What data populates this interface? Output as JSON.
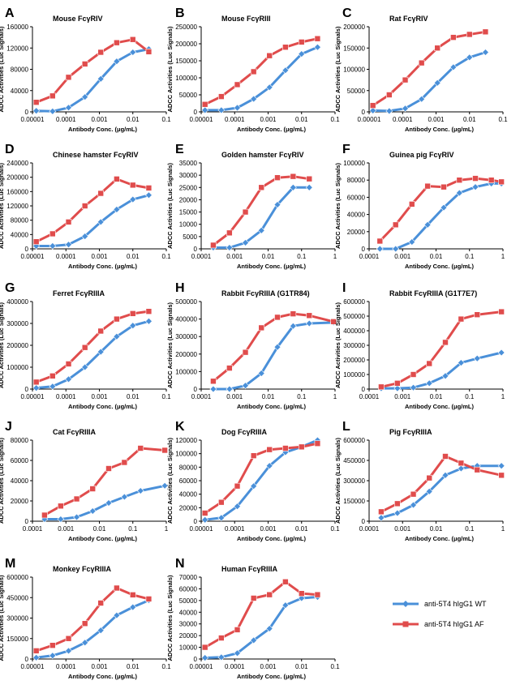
{
  "colors": {
    "wt": "#4a90d9",
    "af": "#e04c4c",
    "axis": "#000000"
  },
  "legend": [
    {
      "series": "wt",
      "label": "anti-5T4 hIgG1 WT"
    },
    {
      "series": "af",
      "label": "anti-5T4 hIgG1 AF"
    }
  ],
  "chart_data": [
    {
      "letter": "A",
      "title": "Mouse FcγRIV",
      "type": "line",
      "xscale": "log",
      "xlim": [
        1e-05,
        0.1
      ],
      "xticks": [
        "0.00001",
        "0.0001",
        "0.001",
        "0.01",
        "0.1"
      ],
      "ylim": [
        0,
        160000
      ],
      "yticks": [
        0,
        40000,
        80000,
        120000,
        160000
      ],
      "xlabel": "Antibody Conc. (μg/mL)",
      "ylabel": "ADCC Activities (Luc Signals)",
      "x": [
        1.3e-05,
        4e-05,
        0.00012,
        0.00037,
        0.0011,
        0.0033,
        0.01,
        0.03
      ],
      "series": [
        {
          "key": "wt",
          "values": [
            2000,
            1000,
            8000,
            28000,
            62000,
            95000,
            112000,
            118000
          ]
        },
        {
          "key": "af",
          "values": [
            18000,
            30000,
            65000,
            90000,
            112000,
            130000,
            136000,
            113000
          ]
        }
      ]
    },
    {
      "letter": "B",
      "title": "Mouse FcγRIII",
      "type": "line",
      "xscale": "log",
      "xlim": [
        1e-05,
        0.1
      ],
      "xticks": [
        "0.00001",
        "0.0001",
        "0.001",
        "0.01",
        "0.1"
      ],
      "ylim": [
        0,
        250000
      ],
      "yticks": [
        0,
        50000,
        100000,
        150000,
        200000,
        250000
      ],
      "xlabel": "Antibody Conc. (μg/mL)",
      "ylabel": "ADCC Activities (Luc Signals)",
      "x": [
        1.3e-05,
        4e-05,
        0.00012,
        0.00037,
        0.0011,
        0.0033,
        0.01,
        0.03
      ],
      "series": [
        {
          "key": "wt",
          "values": [
            5000,
            5000,
            12000,
            38000,
            72000,
            122000,
            170000,
            190000
          ]
        },
        {
          "key": "af",
          "values": [
            22000,
            45000,
            80000,
            118000,
            165000,
            190000,
            205000,
            215000
          ]
        }
      ]
    },
    {
      "letter": "C",
      "title": "Rat FcγRIV",
      "type": "line",
      "xscale": "log",
      "xlim": [
        1e-05,
        0.1
      ],
      "xticks": [
        "0.00001",
        "0.0001",
        "0.001",
        "0.01",
        "0.1"
      ],
      "ylim": [
        0,
        200000
      ],
      "yticks": [
        0,
        50000,
        100000,
        150000,
        200000
      ],
      "xlabel": "Antibody Conc. (μg/mL)",
      "ylabel": "ADCC Activities (Luc Signals)",
      "x": [
        1.3e-05,
        4e-05,
        0.00012,
        0.00037,
        0.0011,
        0.0033,
        0.01,
        0.03
      ],
      "series": [
        {
          "key": "wt",
          "values": [
            3000,
            2000,
            8000,
            30000,
            68000,
            105000,
            128000,
            140000
          ]
        },
        {
          "key": "af",
          "values": [
            15000,
            40000,
            75000,
            115000,
            150000,
            175000,
            182000,
            188000
          ]
        }
      ]
    },
    {
      "letter": "D",
      "title": "Chinese hamster FcγRIV",
      "type": "line",
      "xscale": "log",
      "xlim": [
        1e-05,
        0.1
      ],
      "xticks": [
        "0.00001",
        "0.0001",
        "0.001",
        "0.01",
        "0.1"
      ],
      "ylim": [
        0,
        240000
      ],
      "yticks": [
        0,
        40000,
        80000,
        120000,
        160000,
        200000,
        240000
      ],
      "xlabel": "Antibody Conc. (μg/mL)",
      "ylabel": "ADCC Activities (Luc Signals)",
      "x": [
        1.3e-05,
        4e-05,
        0.00012,
        0.00037,
        0.0011,
        0.0033,
        0.01,
        0.03
      ],
      "series": [
        {
          "key": "wt",
          "values": [
            8000,
            8000,
            12000,
            35000,
            75000,
            110000,
            138000,
            150000
          ]
        },
        {
          "key": "af",
          "values": [
            20000,
            42000,
            75000,
            120000,
            155000,
            195000,
            178000,
            170000
          ]
        }
      ]
    },
    {
      "letter": "E",
      "title": "Golden hamster FcγRIV",
      "type": "line",
      "xscale": "log",
      "xlim": [
        0.0001,
        1
      ],
      "xticks": [
        "0.0001",
        "0.001",
        "0.01",
        "0.1",
        "1"
      ],
      "ylim": [
        0,
        35000
      ],
      "yticks": [
        0,
        5000,
        10000,
        15000,
        20000,
        25000,
        30000,
        35000
      ],
      "xlabel": "Antibody Conc. (μg/mL)",
      "ylabel": "ADCC Activities (Luc Signals)",
      "x": [
        0.00023,
        0.0007,
        0.0021,
        0.0063,
        0.019,
        0.056,
        0.17
      ],
      "series": [
        {
          "key": "wt",
          "values": [
            500,
            500,
            2500,
            7500,
            18000,
            25000,
            25000
          ]
        },
        {
          "key": "af",
          "values": [
            1500,
            6500,
            15000,
            25000,
            29000,
            29500,
            28500
          ]
        }
      ]
    },
    {
      "letter": "F",
      "title": "Guinea pig FcγRIV",
      "type": "line",
      "xscale": "log",
      "xlim": [
        0.0001,
        1
      ],
      "xticks": [
        "0.0001",
        "0.001",
        "0.01",
        "0.1",
        "1"
      ],
      "ylim": [
        0,
        100000
      ],
      "yticks": [
        0,
        20000,
        40000,
        60000,
        80000,
        100000
      ],
      "xlabel": "Antibody Conc. (μg/mL)",
      "ylabel": "ADCC Activities (Luc Signals)",
      "x": [
        0.00021,
        0.00062,
        0.0019,
        0.0056,
        0.017,
        0.05,
        0.15,
        0.45,
        0.9
      ],
      "series": [
        {
          "key": "wt",
          "values": [
            0,
            0,
            8000,
            28000,
            48000,
            65000,
            72000,
            76000,
            76000
          ]
        },
        {
          "key": "af",
          "values": [
            9000,
            28000,
            52000,
            73000,
            72000,
            80000,
            82000,
            80000,
            78000
          ]
        }
      ]
    },
    {
      "letter": "G",
      "title": "Ferret FcγRIIIA",
      "type": "line",
      "xscale": "log",
      "xlim": [
        1e-05,
        0.1
      ],
      "xticks": [
        "0.00001",
        "0.0001",
        "0.001",
        "0.01",
        "0.1"
      ],
      "ylim": [
        0,
        400000
      ],
      "yticks": [
        0,
        100000,
        200000,
        300000,
        400000
      ],
      "xlabel": "Antibody Conc. (μg/mL)",
      "ylabel": "ADCC Activities (Luc Signals)",
      "x": [
        1.3e-05,
        4e-05,
        0.00012,
        0.00037,
        0.0011,
        0.0033,
        0.01,
        0.03
      ],
      "series": [
        {
          "key": "wt",
          "values": [
            5000,
            12000,
            45000,
            100000,
            170000,
            240000,
            290000,
            310000
          ]
        },
        {
          "key": "af",
          "values": [
            32000,
            60000,
            115000,
            190000,
            265000,
            320000,
            345000,
            355000
          ]
        }
      ]
    },
    {
      "letter": "H",
      "title": "Rabbit FcγRIIIA (G1TR84)",
      "type": "line",
      "xscale": "log",
      "xlim": [
        0.0001,
        1
      ],
      "xticks": [
        "0.0001",
        "0.001",
        "0.01",
        "0.1",
        "1"
      ],
      "ylim": [
        0,
        500000
      ],
      "yticks": [
        0,
        100000,
        200000,
        300000,
        400000,
        500000
      ],
      "xlabel": "Antibody Conc. (μg/mL)",
      "ylabel": "ADCC Activities (Luc Signals)",
      "x": [
        0.00023,
        0.0007,
        0.0021,
        0.0063,
        0.019,
        0.056,
        0.17,
        0.9
      ],
      "series": [
        {
          "key": "wt",
          "values": [
            0,
            0,
            20000,
            90000,
            240000,
            360000,
            375000,
            380000
          ]
        },
        {
          "key": "af",
          "values": [
            45000,
            120000,
            210000,
            350000,
            410000,
            430000,
            420000,
            385000
          ]
        }
      ]
    },
    {
      "letter": "I",
      "title": "Rabbit FcγRIIIA (G1T7E7)",
      "type": "line",
      "xscale": "log",
      "xlim": [
        0.0001,
        1
      ],
      "xticks": [
        "0.0001",
        "0.001",
        "0.01",
        "0.1",
        "1"
      ],
      "ylim": [
        0,
        600000
      ],
      "yticks": [
        0,
        100000,
        200000,
        300000,
        400000,
        500000,
        600000
      ],
      "xlabel": "Antibody Conc. (μg/mL)",
      "ylabel": "ADCC Activities (Luc Signals)",
      "x": [
        0.00023,
        0.0007,
        0.0021,
        0.0063,
        0.019,
        0.056,
        0.17,
        0.9
      ],
      "series": [
        {
          "key": "wt",
          "values": [
            5000,
            5000,
            10000,
            40000,
            90000,
            180000,
            210000,
            250000
          ]
        },
        {
          "key": "af",
          "values": [
            15000,
            40000,
            100000,
            175000,
            320000,
            480000,
            510000,
            530000
          ]
        }
      ]
    },
    {
      "letter": "J",
      "title": "Cat FcγRIIIA",
      "type": "line",
      "xscale": "log",
      "xlim": [
        0.0001,
        1
      ],
      "xticks": [
        "0.0001",
        "0.001",
        "0.01",
        "0.1",
        "1"
      ],
      "ylim": [
        0,
        80000
      ],
      "yticks": [
        0,
        20000,
        40000,
        60000,
        80000
      ],
      "xlabel": "Antibody Conc. (μg/mL)",
      "ylabel": "ADCC Activities (Luc Signals)",
      "x": [
        0.00023,
        0.0007,
        0.0021,
        0.0063,
        0.019,
        0.056,
        0.17,
        0.9
      ],
      "series": [
        {
          "key": "wt",
          "values": [
            2000,
            2000,
            4000,
            10000,
            18000,
            24000,
            30000,
            35000
          ]
        },
        {
          "key": "af",
          "values": [
            6000,
            15000,
            22000,
            32000,
            52000,
            58000,
            72000,
            70000
          ]
        }
      ]
    },
    {
      "letter": "K",
      "title": "Dog FcγRIIIA",
      "type": "line",
      "xscale": "log",
      "xlim": [
        1e-05,
        0.1
      ],
      "xticks": [
        "0.00001",
        "0.0001",
        "0.001",
        "0.01",
        "0.1"
      ],
      "ylim": [
        0,
        120000
      ],
      "yticks": [
        0,
        20000,
        40000,
        60000,
        80000,
        100000,
        120000
      ],
      "xlabel": "Antibody Conc. (μg/mL)",
      "ylabel": "ADCC Activities (Luc Signals)",
      "x": [
        1.3e-05,
        4e-05,
        0.00012,
        0.00037,
        0.0011,
        0.0033,
        0.01,
        0.03
      ],
      "series": [
        {
          "key": "wt",
          "values": [
            2000,
            5000,
            22000,
            52000,
            82000,
            102000,
            110000,
            120000
          ]
        },
        {
          "key": "af",
          "values": [
            12000,
            28000,
            52000,
            97000,
            106000,
            108000,
            110000,
            115000
          ]
        }
      ]
    },
    {
      "letter": "L",
      "title": "Pig FcγRIIIA",
      "type": "line",
      "xscale": "log",
      "xlim": [
        0.0001,
        1
      ],
      "xticks": [
        "0.0001",
        "0.001",
        "0.01",
        "0.1",
        "1"
      ],
      "ylim": [
        0,
        600000
      ],
      "yticks": [
        0,
        150000,
        300000,
        450000,
        600000
      ],
      "xlabel": "Antibody Conc. (μg/mL)",
      "ylabel": "ADCC Activities (Luc Signals)",
      "x": [
        0.00023,
        0.0007,
        0.0021,
        0.0063,
        0.019,
        0.056,
        0.17,
        0.9
      ],
      "series": [
        {
          "key": "wt",
          "values": [
            25000,
            60000,
            120000,
            220000,
            340000,
            390000,
            410000,
            410000
          ]
        },
        {
          "key": "af",
          "values": [
            70000,
            130000,
            200000,
            320000,
            480000,
            430000,
            380000,
            340000
          ]
        }
      ]
    },
    {
      "letter": "M",
      "title": "Monkey FcγRIIIA",
      "type": "line",
      "xscale": "log",
      "xlim": [
        1e-05,
        0.1
      ],
      "xticks": [
        "0.00001",
        "0.0001",
        "0.001",
        "0.01",
        "0.1"
      ],
      "ylim": [
        0,
        600000
      ],
      "yticks": [
        0,
        150000,
        300000,
        450000,
        600000
      ],
      "xlabel": "Antibody Conc. (μg/mL)",
      "ylabel": "ADCC Activities (Luc Signals)",
      "x": [
        1.3e-05,
        4e-05,
        0.00012,
        0.00037,
        0.0011,
        0.0033,
        0.01,
        0.03
      ],
      "series": [
        {
          "key": "wt",
          "values": [
            10000,
            25000,
            60000,
            120000,
            210000,
            320000,
            380000,
            430000
          ]
        },
        {
          "key": "af",
          "values": [
            60000,
            100000,
            150000,
            260000,
            410000,
            520000,
            470000,
            440000
          ]
        }
      ]
    },
    {
      "letter": "N",
      "title": "Human FcγRIIIA",
      "type": "line",
      "xscale": "log",
      "xlim": [
        1e-05,
        0.1
      ],
      "xticks": [
        "0.00001",
        "0.0001",
        "0.001",
        "0.01",
        "0.1"
      ],
      "ylim": [
        0,
        70000
      ],
      "yticks": [
        0,
        10000,
        20000,
        30000,
        40000,
        50000,
        60000,
        70000
      ],
      "xlabel": "Antibody Conc. (μg/mL)",
      "ylabel": "ADCC Activities (Luc Signals)",
      "x": [
        1.3e-05,
        4e-05,
        0.00012,
        0.00037,
        0.0011,
        0.0033,
        0.01,
        0.03
      ],
      "series": [
        {
          "key": "wt",
          "values": [
            1000,
            1500,
            5000,
            16000,
            26000,
            46000,
            52000,
            53000
          ]
        },
        {
          "key": "af",
          "values": [
            10000,
            18000,
            25000,
            52000,
            55000,
            66000,
            56000,
            55000
          ]
        }
      ]
    }
  ]
}
